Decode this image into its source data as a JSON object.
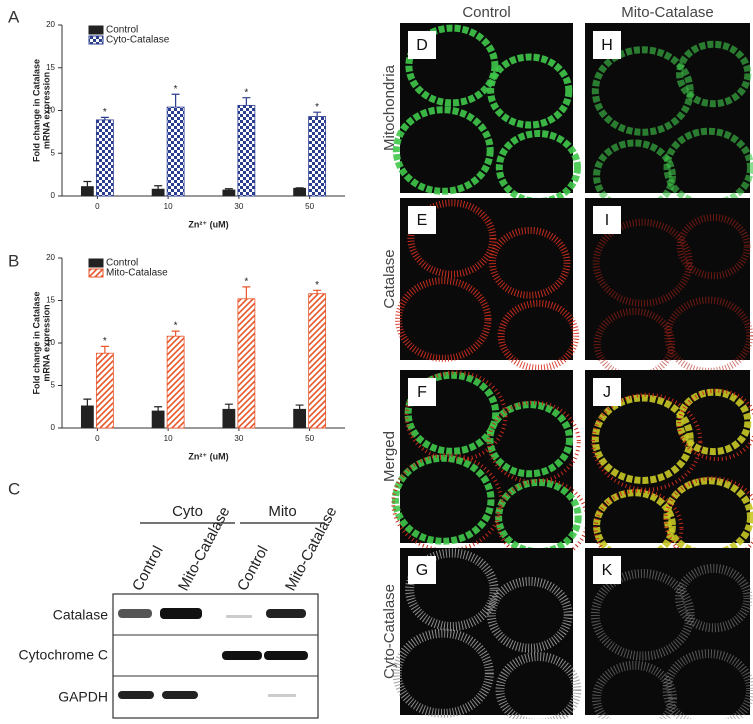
{
  "chart_data": [
    {
      "type": "bar",
      "panel": "A",
      "ylabel": [
        "Fold change in Catalase",
        "mRNA expression"
      ],
      "xlabel": "Zn²⁺ (uM)",
      "categories": [
        "0",
        "10",
        "30",
        "50"
      ],
      "ylim": [
        0,
        20
      ],
      "yticks": [
        0,
        5,
        10,
        15,
        20
      ],
      "series": [
        {
          "name": "Control",
          "color": "#222222",
          "pattern": "solid",
          "values": [
            1.1,
            0.8,
            0.7,
            0.9
          ],
          "errors": [
            0.6,
            0.4,
            0.15,
            0.05
          ]
        },
        {
          "name": "Cyto-Catalase",
          "color": "#2b3d8f",
          "pattern": "checker",
          "values": [
            8.9,
            10.4,
            10.6,
            9.3
          ],
          "errors": [
            0.3,
            1.5,
            0.9,
            0.5
          ],
          "significance": [
            "*",
            "*",
            "*",
            "*"
          ]
        }
      ]
    },
    {
      "type": "bar",
      "panel": "B",
      "ylabel": [
        "Fold change in Catalase",
        "mRNA expression"
      ],
      "xlabel": "Zn²⁺ (uM)",
      "categories": [
        "0",
        "10",
        "30",
        "50"
      ],
      "ylim": [
        0,
        20
      ],
      "yticks": [
        0,
        5,
        10,
        15,
        20
      ],
      "series": [
        {
          "name": "Control",
          "color": "#222222",
          "pattern": "solid",
          "values": [
            2.6,
            2.0,
            2.2,
            2.2
          ],
          "errors": [
            0.8,
            0.5,
            0.6,
            0.5
          ]
        },
        {
          "name": "Mito-Catalase",
          "color": "#e8562a",
          "pattern": "hatch",
          "values": [
            8.8,
            10.8,
            15.2,
            15.8
          ],
          "errors": [
            0.8,
            0.6,
            1.4,
            0.4
          ],
          "significance": [
            "*",
            "*",
            "*",
            "*"
          ]
        }
      ]
    }
  ],
  "blot": {
    "panel": "C",
    "groups": [
      "Cyto",
      "Mito"
    ],
    "lanes": [
      "Control",
      "Mito-Catalase",
      "Control",
      "Mito-Catalase"
    ],
    "rows": [
      "Catalase",
      "Cytochrome C",
      "GAPDH"
    ]
  },
  "microscopy": {
    "columns": [
      "Control",
      "Mito-Catalase"
    ],
    "rows": [
      "Mitochondria",
      "Catalase",
      "Merged",
      "Cyto-Catalase"
    ],
    "panels": [
      [
        "D",
        "H"
      ],
      [
        "E",
        "I"
      ],
      [
        "F",
        "J"
      ],
      [
        "G",
        "K"
      ]
    ]
  }
}
